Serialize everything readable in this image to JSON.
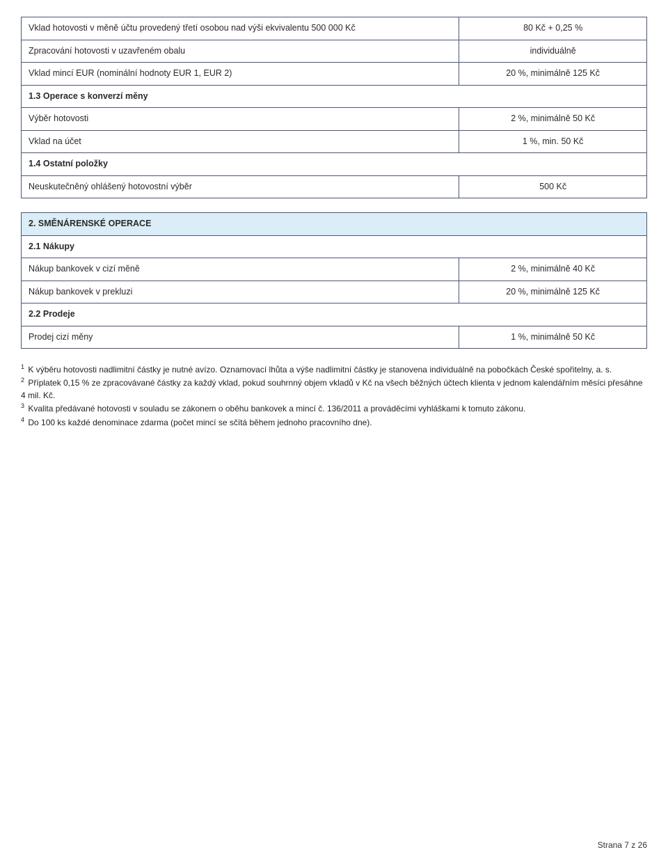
{
  "tables": {
    "table1": {
      "rows": [
        {
          "label": "Vklad hotovosti v měně účtu provedený třetí osobou nad výši ekvivalentu 500 000 Kč",
          "value": "80 Kč + 0,25 %",
          "type": "data"
        },
        {
          "label": "Zpracování hotovosti v uzavřeném obalu",
          "value": "individuálně",
          "type": "data"
        },
        {
          "label": "Vklad mincí EUR (nominální hodnoty EUR 1, EUR 2)",
          "value": "20 %, minimálně 125 Kč",
          "type": "data"
        },
        {
          "label": "1.3 Operace s konverzí měny",
          "type": "subsection"
        },
        {
          "label": "Výběr hotovosti",
          "value": "2 %, minimálně 50 Kč",
          "type": "data"
        },
        {
          "label": "Vklad na účet",
          "value": "1 %, min. 50 Kč",
          "type": "data"
        },
        {
          "label": "1.4 Ostatní položky",
          "type": "subsection"
        },
        {
          "label": "Neuskutečněný ohlášený hotovostní výběr",
          "value": "500 Kč",
          "type": "data"
        }
      ]
    },
    "table2": {
      "rows": [
        {
          "label": "2. SMĚNÁRENSKÉ OPERACE",
          "type": "section"
        },
        {
          "label": "2.1 Nákupy",
          "type": "subsection"
        },
        {
          "label": "Nákup bankovek v cizí měně",
          "value": "2 %, minimálně 40 Kč",
          "type": "data"
        },
        {
          "label": "Nákup bankovek v prekluzi",
          "value": "20 %, minimálně 125 Kč",
          "type": "data"
        },
        {
          "label": "2.2 Prodeje",
          "type": "subsection"
        },
        {
          "label": "Prodej cizí měny",
          "value": "1 %, minimálně 50 Kč",
          "type": "data"
        }
      ]
    }
  },
  "footnotes": [
    {
      "num": "1",
      "text": "K výběru hotovosti nadlimitní částky je nutné avízo. Oznamovací lhůta a výše nadlimitní částky je stanovena individuálně na pobočkách České spořitelny, a. s."
    },
    {
      "num": "2",
      "text": "Příplatek 0,15 % ze zpracovávané částky za každý vklad, pokud souhrnný objem vkladů v Kč na všech běžných účtech klienta v jednom kalendářním měsíci přesáhne 4 mil. Kč."
    },
    {
      "num": "3",
      "text": "Kvalita předávané hotovosti v souladu se zákonem o oběhu bankovek a mincí č. 136/2011 a prováděcími vyhláškami k tomuto zákonu."
    },
    {
      "num": "4",
      "text": "Do 100 ks každé denominace zdarma (počet mincí se sčítá během jednoho pracovního dne)."
    }
  ],
  "pager": "Strana 7 z 26"
}
